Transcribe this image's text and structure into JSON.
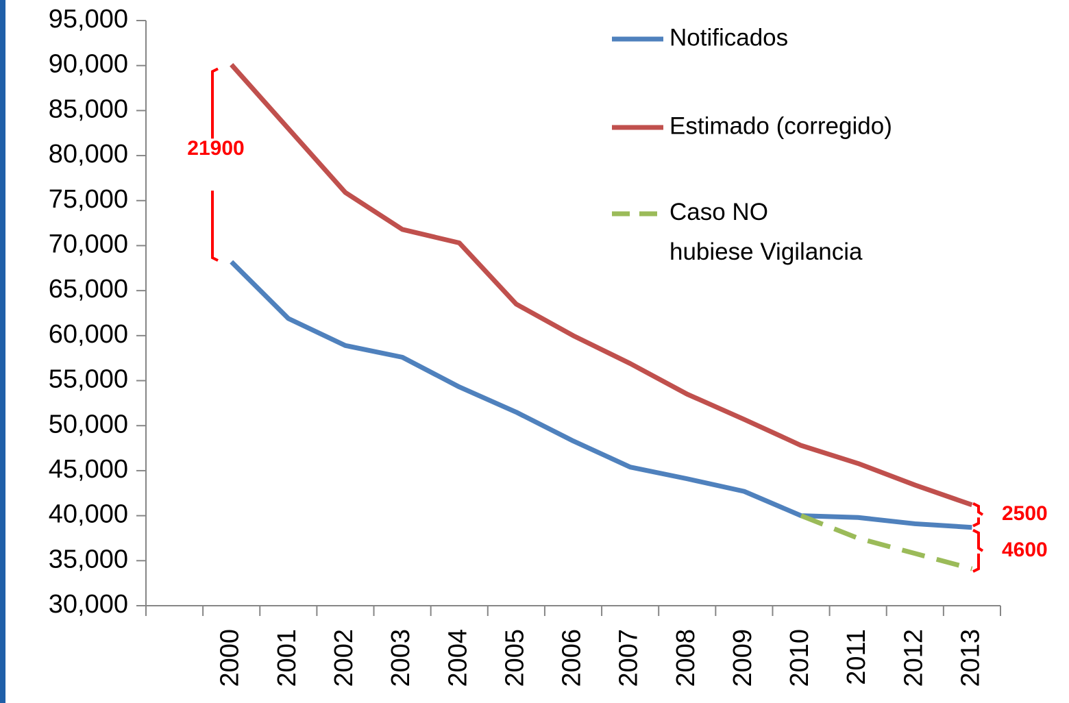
{
  "chart_data": {
    "type": "line",
    "categories": [
      null,
      "2000",
      "2001",
      "2002",
      "2003",
      "2004",
      "2005",
      "2006",
      "2007",
      "2008",
      "2009",
      "2010",
      "2011",
      "2012",
      "2013"
    ],
    "series": [
      {
        "name": "Notificados",
        "color": "#4f81bd",
        "dashed": false,
        "values": [
          null,
          68200,
          61900,
          58900,
          57600,
          54300,
          51500,
          48300,
          45400,
          44100,
          42700,
          40000,
          39800,
          39100,
          38700
        ]
      },
      {
        "name": "Estimado (corregido)",
        "color": "#c0504d",
        "dashed": false,
        "values": [
          null,
          90100,
          83000,
          75900,
          71800,
          70300,
          63500,
          60000,
          56900,
          53500,
          50700,
          47800,
          45800,
          43400,
          41200
        ]
      },
      {
        "name": "Caso NO\nhubiese Vigilancia",
        "color": "#9bbb59",
        "dashed": true,
        "values": [
          null,
          null,
          null,
          null,
          null,
          null,
          null,
          null,
          null,
          null,
          null,
          40000,
          37500,
          35800,
          34100
        ]
      }
    ],
    "ylim": [
      30000,
      95000
    ],
    "yticks": [
      {
        "value": 30000,
        "label": "30,000"
      },
      {
        "value": 35000,
        "label": "35,000"
      },
      {
        "value": 40000,
        "label": "40,000"
      },
      {
        "value": 45000,
        "label": "45,000"
      },
      {
        "value": 50000,
        "label": "50,000"
      },
      {
        "value": 55000,
        "label": "55,000"
      },
      {
        "value": 60000,
        "label": "60,000"
      },
      {
        "value": 65000,
        "label": "65,000"
      },
      {
        "value": 70000,
        "label": "70,000"
      },
      {
        "value": 75000,
        "label": "75,000"
      },
      {
        "value": 80000,
        "label": "80,000"
      },
      {
        "value": 85000,
        "label": "85,000"
      },
      {
        "value": 90000,
        "label": "90,000"
      },
      {
        "value": 95000,
        "label": "95,000"
      }
    ],
    "grid": false,
    "legend": "top-right",
    "annotations": [
      {
        "text": "21900"
      },
      {
        "text": "2500"
      },
      {
        "text": "4600"
      }
    ]
  }
}
